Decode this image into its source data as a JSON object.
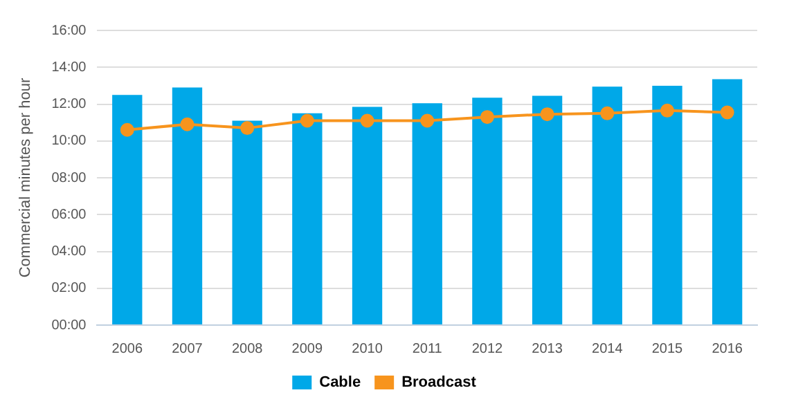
{
  "chart_data": {
    "type": "bar",
    "ylabel": "Commercial minutes per hour",
    "categories": [
      "2006",
      "2007",
      "2008",
      "2009",
      "2010",
      "2011",
      "2012",
      "2013",
      "2014",
      "2015",
      "2016"
    ],
    "series": [
      {
        "name": "Cable",
        "color": "#00a8e8",
        "values": [
          12.5,
          12.9,
          11.1,
          11.5,
          11.85,
          12.05,
          12.35,
          12.45,
          12.95,
          13.0,
          13.35
        ]
      },
      {
        "name": "Broadcast",
        "type": "line",
        "color": "#f7941d",
        "marker": "circle",
        "values": [
          10.6,
          10.9,
          10.7,
          11.1,
          11.1,
          11.1,
          11.3,
          11.45,
          11.5,
          11.65,
          11.55
        ]
      }
    ],
    "ylim": [
      0,
      16
    ],
    "yticks": [
      {
        "value": 0,
        "label": "00:00"
      },
      {
        "value": 2,
        "label": "02:00"
      },
      {
        "value": 4,
        "label": "04:00"
      },
      {
        "value": 6,
        "label": "06:00"
      },
      {
        "value": 8,
        "label": "08:00"
      },
      {
        "value": 10,
        "label": "10:00"
      },
      {
        "value": 12,
        "label": "12:00"
      },
      {
        "value": 14,
        "label": "14:00"
      },
      {
        "value": 16,
        "label": "16:00"
      }
    ],
    "grid": "y",
    "legend": "bottom"
  }
}
